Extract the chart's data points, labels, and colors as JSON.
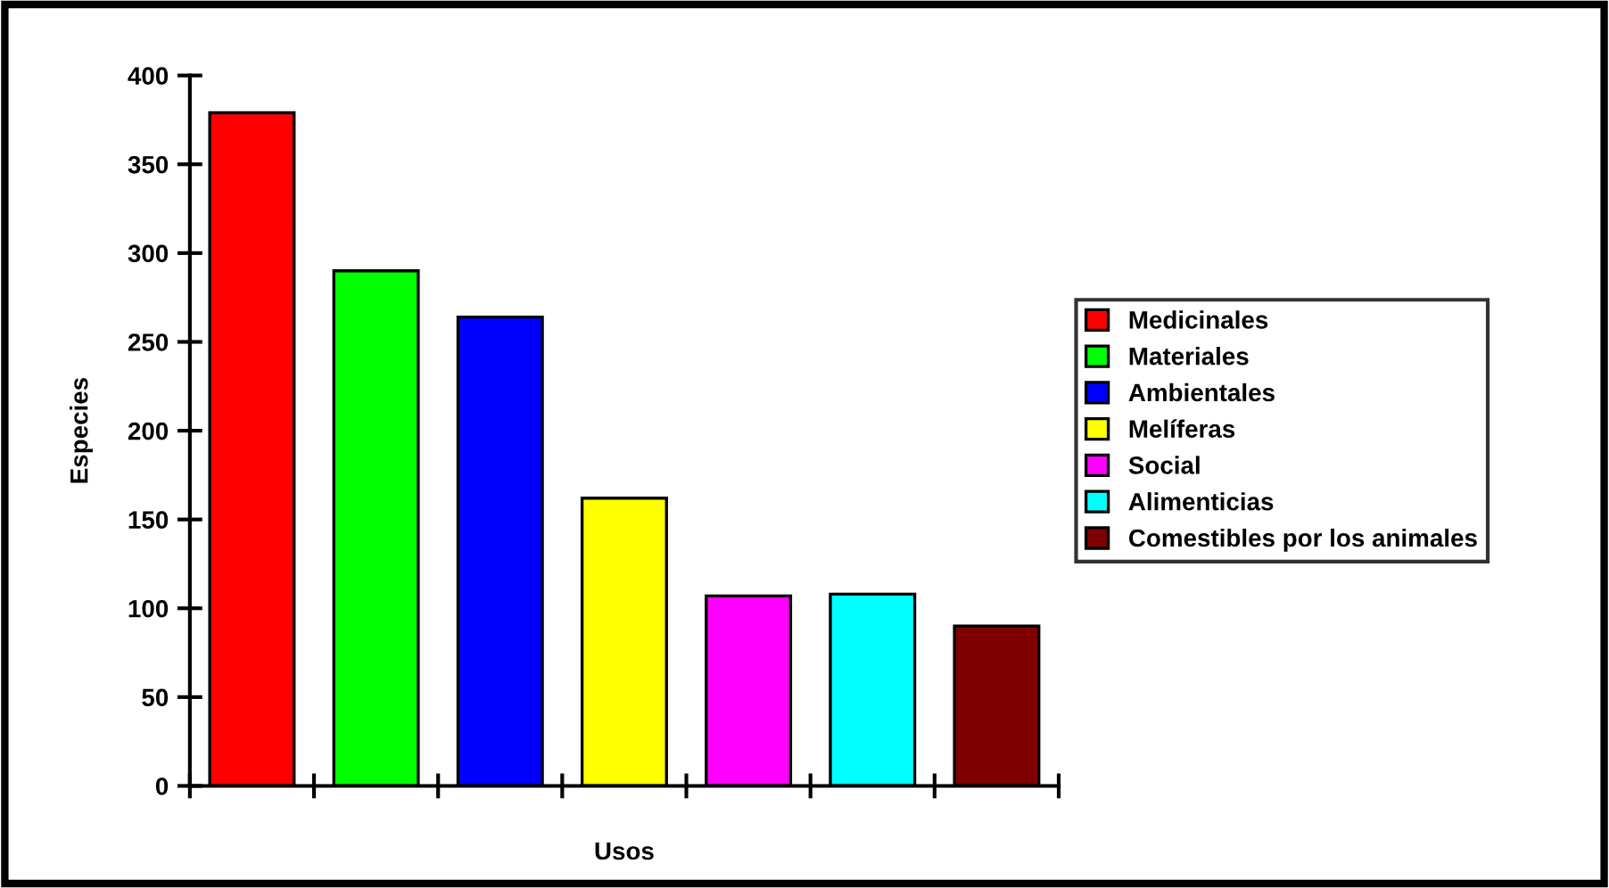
{
  "chart_data": {
    "type": "bar",
    "xlabel": "Usos",
    "ylabel": "Especies",
    "categories": [
      null,
      null,
      null,
      null,
      null,
      null,
      null
    ],
    "series": [
      {
        "name": "Medicinales",
        "color": "#ff0000",
        "values": [
          379,
          null,
          null,
          null,
          null,
          null,
          null
        ]
      },
      {
        "name": "Materiales",
        "color": "#00ff00",
        "values": [
          null,
          290,
          null,
          null,
          null,
          null,
          null
        ]
      },
      {
        "name": "Ambientales",
        "color": "#0000ff",
        "values": [
          null,
          null,
          264,
          null,
          null,
          null,
          null
        ]
      },
      {
        "name": "Melíferas",
        "color": "#ffff00",
        "values": [
          null,
          null,
          null,
          162,
          null,
          null,
          null
        ]
      },
      {
        "name": "Social",
        "color": "#ff00ff",
        "values": [
          null,
          null,
          null,
          null,
          107,
          null,
          null
        ]
      },
      {
        "name": "Alimenticias",
        "color": "#00ffff",
        "values": [
          null,
          null,
          null,
          null,
          null,
          108,
          null
        ]
      },
      {
        "name": "Comestibles por los animales",
        "color": "#800000",
        "values": [
          null,
          null,
          null,
          null,
          null,
          null,
          90
        ]
      }
    ],
    "ylim": [
      0,
      400
    ],
    "yticks": [
      0,
      50,
      100,
      150,
      200,
      250,
      300,
      350,
      400
    ],
    "tick_labels": "y",
    "legend": "right",
    "grid": false
  }
}
